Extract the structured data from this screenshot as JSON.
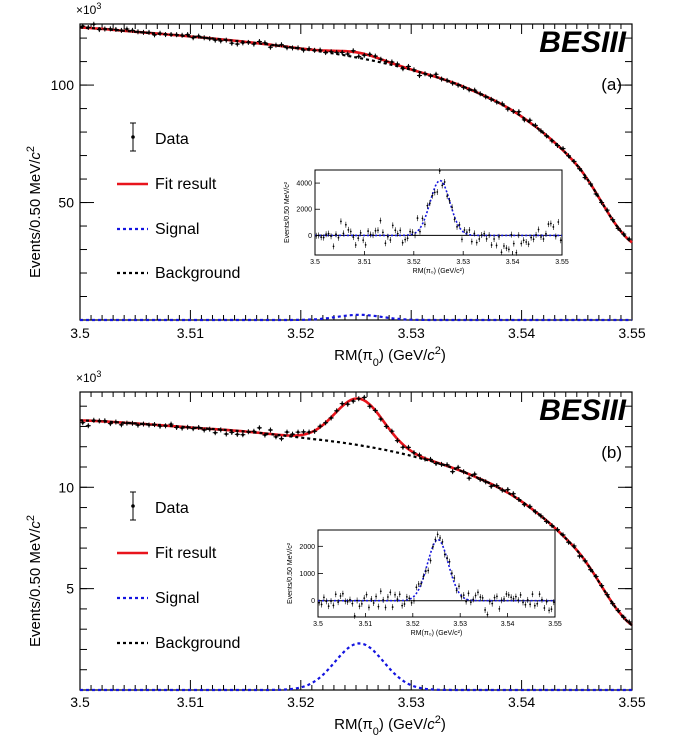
{
  "chart_data": [
    {
      "type": "line",
      "tag": "(a)",
      "logo": "BESIII",
      "exponent": "×10",
      "exponent_power": "3",
      "xlabel": "RM(π",
      "xlabel_sub": "0",
      "xlabel_unit": ") (GeV/",
      "xlabel_c": "c",
      "xlabel_sup": "2",
      "xlabel_end": ")",
      "ylabel": "Events/0.50 MeV/",
      "ylabel_c": "c",
      "ylabel_sup": "2",
      "xlim": [
        3.5,
        3.55
      ],
      "ylim": [
        0,
        126
      ],
      "xticks": [
        "3.5",
        "3.51",
        "3.52",
        "3.53",
        "3.54",
        "3.55"
      ],
      "yticks": [
        {
          "v": 50,
          "label": "50"
        },
        {
          "v": 100,
          "label": "100"
        }
      ],
      "legend": {
        "data": "Data",
        "fit": "Fit result",
        "signal": "Signal",
        "background": "Background"
      },
      "colors": {
        "fit": "#e8141c",
        "signal": "#1414e0",
        "background": "#000000",
        "data": "#000000"
      },
      "background_points": [
        [
          3.5,
          124.5
        ],
        [
          3.505,
          122.7
        ],
        [
          3.51,
          120.7
        ],
        [
          3.515,
          118.4
        ],
        [
          3.52,
          115.5
        ],
        [
          3.525,
          111.8
        ],
        [
          3.53,
          106.5
        ],
        [
          3.535,
          98.8
        ],
        [
          3.54,
          86.6
        ],
        [
          3.545,
          66.0
        ],
        [
          3.55,
          33.0
        ]
      ],
      "signal": {
        "mean": 3.5253,
        "sigma": 0.002,
        "peak": 2.2
      },
      "data_noise": 0.6,
      "inset": {
        "xlim": [
          3.5,
          3.55
        ],
        "ylim": [
          -1500,
          5000
        ],
        "xticks": [
          "3.5",
          "3.51",
          "3.52",
          "3.53",
          "3.54",
          "3.55"
        ],
        "yticks": [
          {
            "v": 0,
            "label": "0"
          },
          {
            "v": 2000,
            "label": "2000"
          },
          {
            "v": 4000,
            "label": "4000"
          }
        ],
        "xlabel": "RM(π₀) (GeV/c²)",
        "ylabel": "Events/0.50 MeV/c²",
        "signal": {
          "mean": 3.5253,
          "sigma": 0.002,
          "peak": 4200
        },
        "noise": 450
      }
    },
    {
      "type": "line",
      "tag": "(b)",
      "logo": "BESIII",
      "exponent": "×10",
      "exponent_power": "3",
      "xlabel": "RM(π",
      "xlabel_sub": "0",
      "xlabel_unit": ") (GeV/",
      "xlabel_c": "c",
      "xlabel_sup": "2",
      "xlabel_end": ")",
      "ylabel": "Events/0.50 MeV/",
      "ylabel_c": "c",
      "ylabel_sup": "2",
      "xlim": [
        3.5,
        3.55
      ],
      "ylim": [
        0,
        14.7
      ],
      "xticks": [
        "3.5",
        "3.51",
        "3.52",
        "3.53",
        "3.54",
        "3.55"
      ],
      "yticks": [
        {
          "v": 5,
          "label": "5"
        },
        {
          "v": 10,
          "label": "10"
        }
      ],
      "legend": {
        "data": "Data",
        "fit": "Fit result",
        "signal": "Signal",
        "background": "Background"
      },
      "colors": {
        "fit": "#e8141c",
        "signal": "#1414e0",
        "background": "#000000",
        "data": "#000000"
      },
      "background_points": [
        [
          3.5,
          13.3
        ],
        [
          3.505,
          13.15
        ],
        [
          3.51,
          12.95
        ],
        [
          3.515,
          12.75
        ],
        [
          3.52,
          12.45
        ],
        [
          3.525,
          12.1
        ],
        [
          3.53,
          11.55
        ],
        [
          3.535,
          10.7
        ],
        [
          3.54,
          9.3
        ],
        [
          3.545,
          6.9
        ],
        [
          3.55,
          3.2
        ]
      ],
      "signal": {
        "mean": 3.5253,
        "sigma": 0.0022,
        "peak": 2.3
      },
      "data_noise": 0.09,
      "inset": {
        "xlim": [
          3.5,
          3.55
        ],
        "ylim": [
          -600,
          2600
        ],
        "xticks": [
          "3.5",
          "3.51",
          "3.52",
          "3.53",
          "3.54",
          "3.55"
        ],
        "yticks": [
          {
            "v": 0,
            "label": "0"
          },
          {
            "v": 1000,
            "label": "1000"
          },
          {
            "v": 2000,
            "label": "2000"
          }
        ],
        "xlabel": "RM(π₀) (GeV/c²)",
        "ylabel": "Events/0.50 MeV/c²",
        "signal": {
          "mean": 3.5253,
          "sigma": 0.0022,
          "peak": 2250
        },
        "noise": 180
      }
    }
  ]
}
